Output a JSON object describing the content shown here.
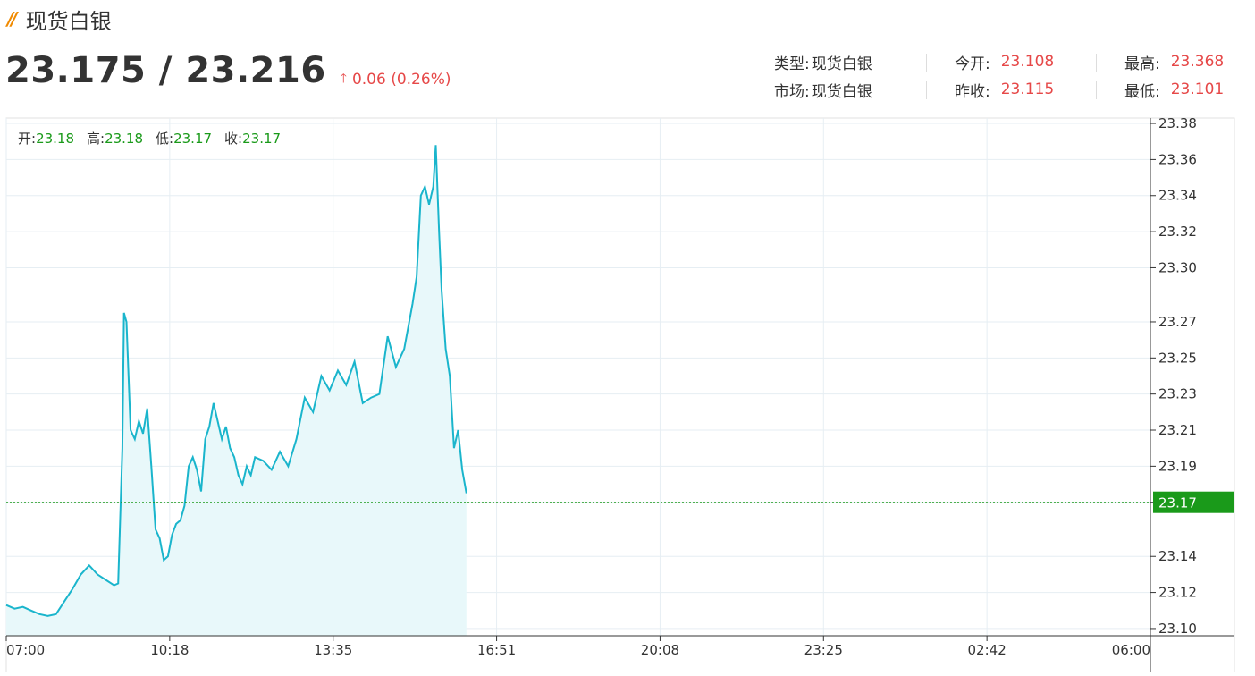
{
  "header": {
    "title": "现货白银",
    "price": "23.175 / 23.216",
    "change": "0.06 (0.26%)"
  },
  "info": {
    "type_label": "类型:",
    "type_value": "现货白银",
    "market_label": "市场:",
    "market_value": "现货白银",
    "open_label": "今开:",
    "open_value": "23.108",
    "prev_close_label": "昨收:",
    "prev_close_value": "23.115",
    "high_label": "最高:",
    "high_value": "23.368",
    "low_label": "最低:",
    "low_value": "23.101"
  },
  "ohlc": {
    "open_label": "开:",
    "open": "23.18",
    "high_label": "高:",
    "high": "23.18",
    "low_label": "低:",
    "low": "23.17",
    "close_label": "收:",
    "close": "23.17"
  },
  "colors": {
    "line": "#1ab5cc",
    "fill": "#e8f8fa",
    "current": "#1a9a1a",
    "up": "#e64848"
  },
  "chart_data": {
    "type": "area",
    "x_ticks": [
      "07:00",
      "10:18",
      "13:35",
      "16:51",
      "20:08",
      "23:25",
      "02:42",
      "06:00"
    ],
    "y_ticks": [
      "23.10",
      "23.12",
      "23.14",
      "23.17",
      "23.19",
      "23.21",
      "23.23",
      "23.25",
      "23.27",
      "23.30",
      "23.32",
      "23.34",
      "23.36",
      "23.38"
    ],
    "ylim": [
      23.096,
      23.383
    ],
    "current_value": 23.17,
    "current_label": "23.17",
    "grid": true,
    "series": [
      {
        "points": [
          [
            "07:00",
            23.113
          ],
          [
            "07:10",
            23.111
          ],
          [
            "07:20",
            23.112
          ],
          [
            "07:30",
            23.11
          ],
          [
            "07:40",
            23.108
          ],
          [
            "07:50",
            23.107
          ],
          [
            "08:00",
            23.108
          ],
          [
            "08:10",
            23.115
          ],
          [
            "08:20",
            23.122
          ],
          [
            "08:30",
            23.13
          ],
          [
            "08:40",
            23.135
          ],
          [
            "08:50",
            23.13
          ],
          [
            "09:00",
            23.127
          ],
          [
            "09:10",
            23.124
          ],
          [
            "09:15",
            23.125
          ],
          [
            "09:20",
            23.2
          ],
          [
            "09:22",
            23.275
          ],
          [
            "09:25",
            23.27
          ],
          [
            "09:30",
            23.21
          ],
          [
            "09:35",
            23.205
          ],
          [
            "09:40",
            23.215
          ],
          [
            "09:45",
            23.208
          ],
          [
            "09:50",
            23.222
          ],
          [
            "09:55",
            23.19
          ],
          [
            "10:00",
            23.155
          ],
          [
            "10:05",
            23.15
          ],
          [
            "10:10",
            23.138
          ],
          [
            "10:15",
            23.14
          ],
          [
            "10:20",
            23.152
          ],
          [
            "10:25",
            23.158
          ],
          [
            "10:30",
            23.16
          ],
          [
            "10:35",
            23.168
          ],
          [
            "10:40",
            23.19
          ],
          [
            "10:45",
            23.195
          ],
          [
            "10:50",
            23.188
          ],
          [
            "10:55",
            23.176
          ],
          [
            "11:00",
            23.205
          ],
          [
            "11:05",
            23.212
          ],
          [
            "11:10",
            23.225
          ],
          [
            "11:15",
            23.215
          ],
          [
            "11:20",
            23.205
          ],
          [
            "11:25",
            23.212
          ],
          [
            "11:30",
            23.2
          ],
          [
            "11:35",
            23.195
          ],
          [
            "11:40",
            23.185
          ],
          [
            "11:45",
            23.18
          ],
          [
            "11:50",
            23.19
          ],
          [
            "11:55",
            23.185
          ],
          [
            "12:00",
            23.195
          ],
          [
            "12:10",
            23.193
          ],
          [
            "12:20",
            23.188
          ],
          [
            "12:30",
            23.198
          ],
          [
            "12:40",
            23.19
          ],
          [
            "12:50",
            23.205
          ],
          [
            "13:00",
            23.228
          ],
          [
            "13:10",
            23.22
          ],
          [
            "13:20",
            23.24
          ],
          [
            "13:30",
            23.232
          ],
          [
            "13:40",
            23.243
          ],
          [
            "13:50",
            23.235
          ],
          [
            "14:00",
            23.248
          ],
          [
            "14:10",
            23.225
          ],
          [
            "14:20",
            23.228
          ],
          [
            "14:30",
            23.23
          ],
          [
            "14:40",
            23.262
          ],
          [
            "14:50",
            23.245
          ],
          [
            "15:00",
            23.255
          ],
          [
            "15:10",
            23.28
          ],
          [
            "15:15",
            23.295
          ],
          [
            "15:20",
            23.34
          ],
          [
            "15:25",
            23.345
          ],
          [
            "15:30",
            23.335
          ],
          [
            "15:35",
            23.345
          ],
          [
            "15:38",
            23.368
          ],
          [
            "15:42",
            23.32
          ],
          [
            "15:45",
            23.288
          ],
          [
            "15:50",
            23.255
          ],
          [
            "15:55",
            23.24
          ],
          [
            "16:00",
            23.2
          ],
          [
            "16:05",
            23.21
          ],
          [
            "16:10",
            23.188
          ],
          [
            "16:15",
            23.175
          ]
        ]
      }
    ]
  }
}
